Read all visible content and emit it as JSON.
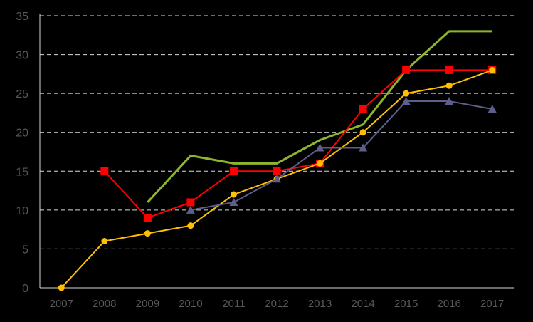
{
  "chart_data": {
    "type": "line",
    "x": [
      "2007",
      "2008",
      "2009",
      "2010",
      "2011",
      "2012",
      "2013",
      "2014",
      "2015",
      "2016",
      "2017"
    ],
    "ylim": [
      0,
      35
    ],
    "yticks": [
      0,
      5,
      10,
      15,
      20,
      25,
      30,
      35
    ],
    "grid": "horizontal-dashed",
    "legend": "none",
    "background": "#000000",
    "series": [
      {
        "color": "#8DB62B",
        "marker": "none",
        "values": [
          null,
          null,
          11,
          17,
          16,
          16,
          19,
          21,
          28,
          33,
          33
        ]
      },
      {
        "color": "#FF0000",
        "marker": "square",
        "values": [
          null,
          15,
          9,
          11,
          15,
          15,
          16,
          23,
          28,
          28,
          28
        ]
      },
      {
        "color": "#FFC000",
        "marker": "circle",
        "values": [
          0,
          6,
          7,
          8,
          12,
          14,
          16,
          20,
          25,
          26,
          28
        ]
      },
      {
        "color": "#5E5E8C",
        "marker": "triangle",
        "values": [
          null,
          null,
          null,
          10,
          11,
          14,
          18,
          18,
          24,
          24,
          23
        ]
      }
    ]
  }
}
